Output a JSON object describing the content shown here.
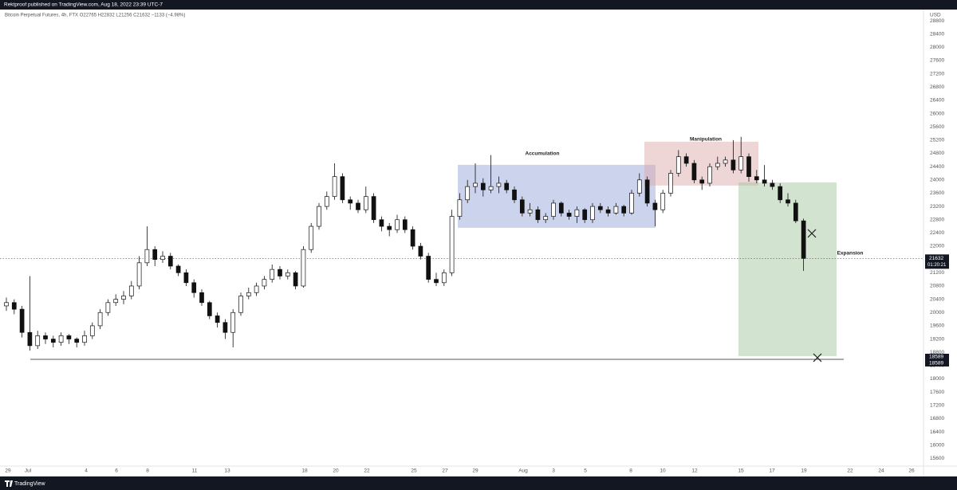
{
  "chart_data": {
    "type": "candlestick",
    "header": "Rektproof published on TradingView.com, Aug 18, 2022 23:39 UTC-7",
    "title": "Bitcoin Perpetual Futures, 4h, FTX  O22765  H22832  L21256  C21632  −1133 (−4.98%)",
    "currency": "USD",
    "brand": "TradingView",
    "x_tick_labels": [
      "29",
      "Jul",
      "4",
      "6",
      "8",
      "11",
      "13",
      "18",
      "20",
      "22",
      "25",
      "27",
      "29",
      "Aug",
      "3",
      "5",
      "8",
      "10",
      "12",
      "15",
      "17",
      "19",
      "22",
      "24",
      "26"
    ],
    "open": [
      20200,
      20300,
      20100,
      19400,
      19000,
      19300,
      19200,
      19100,
      19300,
      19200,
      19100,
      19300,
      19600,
      20000,
      20300,
      20400,
      20500,
      20800,
      21500,
      21900,
      21600,
      21700,
      21400,
      21200,
      20900,
      20600,
      20300,
      19900,
      19700,
      19400,
      20000,
      20500,
      20600,
      20800,
      21000,
      21300,
      21100,
      21200,
      20800,
      21900,
      22600,
      23200,
      23500,
      24100,
      23400,
      23300,
      23100,
      23500,
      22800,
      22600,
      22500,
      22800,
      22500,
      22000,
      21700,
      21000,
      20900,
      21200,
      22900,
      23400,
      23800,
      23900,
      23700,
      23800,
      23900,
      23700,
      23400,
      23000,
      23100,
      22800,
      22900,
      23300,
      23000,
      22900,
      23100,
      22800,
      23200,
      23100,
      23000,
      23200,
      23000,
      23600,
      24000,
      23300,
      23100,
      23600,
      24200,
      24700,
      24500,
      24000,
      23900,
      24400,
      24500,
      24600,
      24300,
      24700,
      24100,
      24000,
      23900,
      23800,
      23400,
      23300,
      22765
    ],
    "high": [
      20450,
      20400,
      20200,
      21100,
      19450,
      19400,
      19300,
      19400,
      19350,
      19250,
      19450,
      19700,
      20100,
      20400,
      20550,
      20650,
      20950,
      21700,
      22600,
      22000,
      21850,
      21800,
      21450,
      21300,
      21000,
      20700,
      20350,
      20000,
      19800,
      20100,
      20600,
      20750,
      20900,
      21100,
      21450,
      21400,
      21300,
      21250,
      22000,
      22700,
      23300,
      23650,
      24500,
      24200,
      23500,
      23400,
      23800,
      23600,
      22900,
      22700,
      22950,
      22900,
      22600,
      22100,
      21800,
      21200,
      21300,
      23100,
      23600,
      24000,
      24500,
      24050,
      24750,
      24100,
      24000,
      23800,
      23500,
      23300,
      23200,
      23000,
      23400,
      23350,
      23100,
      23200,
      23150,
      23300,
      23300,
      23200,
      23300,
      23250,
      23700,
      24200,
      24100,
      23400,
      23700,
      24300,
      24900,
      24800,
      24600,
      24100,
      24500,
      24700,
      24700,
      25200,
      25300,
      24800,
      24300,
      24450,
      24000,
      23900,
      23600,
      23400,
      22832
    ],
    "low": [
      20050,
      19950,
      19250,
      18850,
      18900,
      19050,
      18950,
      19000,
      19050,
      18950,
      19000,
      19200,
      19500,
      19900,
      20200,
      20250,
      20400,
      20700,
      21400,
      21400,
      21500,
      21300,
      21100,
      20800,
      20450,
      20200,
      19800,
      19550,
      19200,
      18950,
      19900,
      20400,
      20500,
      20700,
      20900,
      21000,
      21000,
      20700,
      20750,
      21800,
      22500,
      23100,
      23400,
      23300,
      23100,
      23000,
      23000,
      22700,
      22450,
      22300,
      22400,
      22400,
      21900,
      21600,
      20900,
      20800,
      20800,
      21100,
      22800,
      23300,
      23600,
      23500,
      23600,
      23600,
      23600,
      23300,
      22900,
      22900,
      22700,
      22700,
      22800,
      22900,
      22800,
      22700,
      22700,
      22700,
      23000,
      22900,
      22950,
      22900,
      22950,
      23500,
      23200,
      22600,
      23000,
      23500,
      24100,
      24400,
      23900,
      23700,
      23800,
      24300,
      24400,
      24200,
      24200,
      23950,
      23900,
      23800,
      23700,
      23300,
      23200,
      22700,
      21256
    ],
    "close": [
      20300,
      20100,
      19400,
      19000,
      19300,
      19200,
      19100,
      19300,
      19200,
      19100,
      19300,
      19600,
      20000,
      20300,
      20400,
      20500,
      20800,
      21500,
      21900,
      21600,
      21700,
      21400,
      21200,
      20900,
      20600,
      20300,
      19900,
      19700,
      19400,
      20000,
      20500,
      20600,
      20800,
      21000,
      21300,
      21100,
      21200,
      20800,
      21900,
      22600,
      23200,
      23500,
      24100,
      23400,
      23300,
      23100,
      23500,
      22800,
      22600,
      22500,
      22800,
      22500,
      22000,
      21700,
      21000,
      20900,
      21200,
      22900,
      23400,
      23800,
      23900,
      23700,
      23800,
      23900,
      23700,
      23400,
      23000,
      23100,
      22800,
      22900,
      23300,
      23000,
      22900,
      23100,
      22800,
      23200,
      23100,
      23000,
      23200,
      23000,
      23600,
      24000,
      23300,
      23100,
      23600,
      24200,
      24700,
      24500,
      24000,
      23900,
      24400,
      24500,
      24600,
      24300,
      24700,
      24100,
      24000,
      23900,
      23800,
      23400,
      23300,
      22765,
      21632
    ],
    "ylim": [
      15320,
      29090
    ],
    "yticks": [
      15600,
      16000,
      16400,
      16800,
      17200,
      17600,
      18000,
      18400,
      18800,
      19200,
      19600,
      20000,
      20400,
      20800,
      21200,
      21600,
      22000,
      22400,
      22800,
      23200,
      23600,
      24000,
      24400,
      24800,
      25200,
      25600,
      26000,
      26400,
      26800,
      27200,
      27600,
      28000,
      28400,
      28800
    ],
    "last_price": 21632,
    "countdown": "01:20:21",
    "level": 18589,
    "zones": [
      {
        "label": "Accumulation",
        "top": 24455,
        "bottom": 22556,
        "color": "#8e9fd8"
      },
      {
        "label": "Manipulation",
        "top": 25152,
        "bottom": 23830,
        "color": "#d9a3a6"
      },
      {
        "label": "Expansion",
        "top": 23926,
        "bottom": 18686,
        "color": "#9cc394"
      }
    ],
    "targets": [
      22387,
      18637
    ]
  }
}
